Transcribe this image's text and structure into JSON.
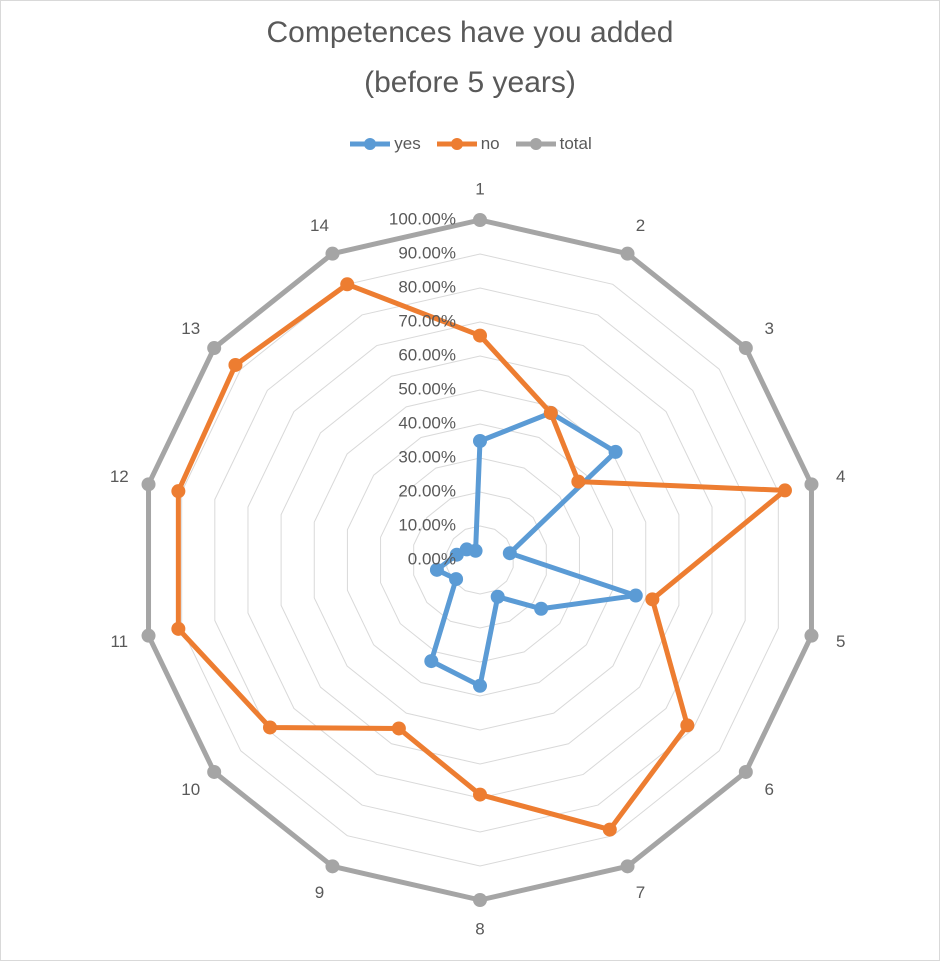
{
  "chart_data": {
    "type": "radar",
    "title_line1": "Competences have you added",
    "title_line2": "(before 5 years)",
    "categories": [
      "1",
      "2",
      "3",
      "4",
      "5",
      "6",
      "7",
      "8",
      "9",
      "10",
      "11",
      "12",
      "13",
      "14"
    ],
    "tick_labels": [
      "0.00%",
      "10.00%",
      "20.00%",
      "30.00%",
      "40.00%",
      "50.00%",
      "60.00%",
      "70.00%",
      "80.00%",
      "90.00%",
      "100.00%"
    ],
    "rmax": 1.0,
    "series": [
      {
        "name": "yes",
        "color": "#5b9bd5",
        "values": [
          0.35,
          0.48,
          0.51,
          0.09,
          0.47,
          0.23,
          0.12,
          0.37,
          0.33,
          0.09,
          0.13,
          0.07,
          0.05,
          0.03
        ]
      },
      {
        "name": "no",
        "color": "#ed7d31",
        "values": [
          0.66,
          0.48,
          0.37,
          0.92,
          0.52,
          0.78,
          0.88,
          0.69,
          0.55,
          0.79,
          0.91,
          0.91,
          0.92,
          0.9
        ]
      },
      {
        "name": "total",
        "color": "#a5a5a5",
        "values": [
          1,
          1,
          1,
          1,
          1,
          1,
          1,
          1,
          1,
          1,
          1,
          1,
          1,
          1
        ]
      }
    ],
    "grid": true,
    "legend_position": "top"
  }
}
